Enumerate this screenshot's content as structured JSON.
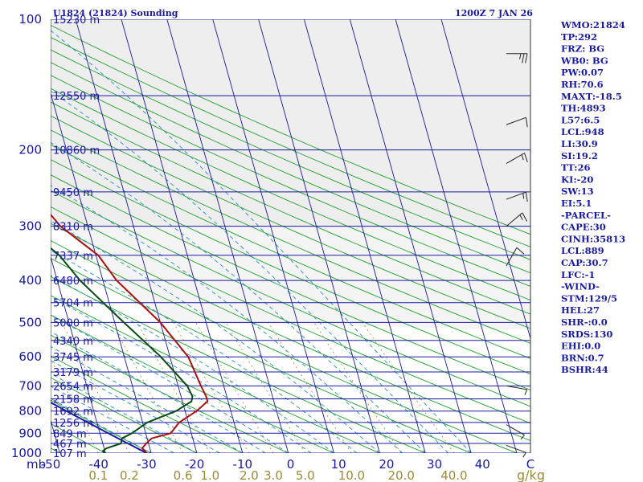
{
  "header": {
    "station": "U1824 (21824) Sounding",
    "time": "1200Z  7 JAN 26"
  },
  "chart_data": {
    "type": "line",
    "title": "U1824 (21824) Sounding",
    "subtitle": "1200Z  7 JAN 26",
    "xlabel": "C",
    "ylabel": "mb",
    "mixing_ratio_unit": "g/kg",
    "xlim": [
      -50,
      50
    ],
    "ylim": [
      1000,
      100
    ],
    "x_ticks": [
      "-50",
      "-40",
      "-30",
      "-20",
      "-10",
      "0",
      "10",
      "20",
      "30",
      "40",
      "C"
    ],
    "p_ticks": [
      "100",
      "200",
      "300",
      "400",
      "500",
      "600",
      "700",
      "800",
      "900",
      "1000"
    ],
    "mixing_ratio_ticks": [
      {
        "v": 0.1,
        "label": "0.1"
      },
      {
        "v": 0.2,
        "label": "0.2"
      },
      {
        "v": 0.6,
        "label": "0.6"
      },
      {
        "v": 1.0,
        "label": "1.0"
      },
      {
        "v": 2.0,
        "label": "2.0"
      },
      {
        "v": 3.0,
        "label": "3.0"
      },
      {
        "v": 5.0,
        "label": "5.0"
      },
      {
        "v": 10.0,
        "label": "10.0"
      },
      {
        "v": 20.0,
        "label": "20.0"
      },
      {
        "v": 40.0,
        "label": "40.0"
      }
    ],
    "heights": [
      {
        "p": 100,
        "label": "15230 m"
      },
      {
        "p": 150,
        "label": "12550 m"
      },
      {
        "p": 200,
        "label": "10860 m"
      },
      {
        "p": 250,
        "label": "9450 m"
      },
      {
        "p": 300,
        "label": "8310 m"
      },
      {
        "p": 350,
        "label": "7337 m"
      },
      {
        "p": 400,
        "label": "6480 m"
      },
      {
        "p": 450,
        "label": "5704 m"
      },
      {
        "p": 500,
        "label": "5000 m"
      },
      {
        "p": 550,
        "label": "4340 m"
      },
      {
        "p": 600,
        "label": "3745 m"
      },
      {
        "p": 650,
        "label": "3179 m"
      },
      {
        "p": 700,
        "label": "2654 m"
      },
      {
        "p": 750,
        "label": "2158 m"
      },
      {
        "p": 800,
        "label": "1692 m"
      },
      {
        "p": 850,
        "label": "1256 m"
      },
      {
        "p": 900,
        "label": "849 m"
      },
      {
        "p": 950,
        "label": "467 m"
      },
      {
        "p": 1000,
        "label": "107 m"
      }
    ],
    "series": [
      {
        "name": "Temperature",
        "color": "#aa1010",
        "points": [
          {
            "p": 1000,
            "t": -31.0
          },
          {
            "p": 990,
            "t": -31.2
          },
          {
            "p": 975,
            "t": -31.7
          },
          {
            "p": 950,
            "t": -30.5
          },
          {
            "p": 925,
            "t": -29.0
          },
          {
            "p": 900,
            "t": -24.5
          },
          {
            "p": 850,
            "t": -22.0
          },
          {
            "p": 800,
            "t": -17.5
          },
          {
            "p": 760,
            "t": -14.5
          },
          {
            "p": 740,
            "t": -14.5
          },
          {
            "p": 700,
            "t": -15.0
          },
          {
            "p": 600,
            "t": -16.0
          },
          {
            "p": 500,
            "t": -20.0
          },
          {
            "p": 400,
            "t": -27.0
          },
          {
            "p": 350,
            "t": -29.5
          },
          {
            "p": 300,
            "t": -36.0
          },
          {
            "p": 275,
            "t": -38.0
          },
          {
            "p": 250,
            "t": -40.0
          },
          {
            "p": 200,
            "t": -46.0
          },
          {
            "p": 150,
            "t": -54.0
          },
          {
            "p": 100,
            "t": -65.0
          }
        ]
      },
      {
        "name": "Dewpoint",
        "color": "#0a4a14",
        "points": [
          {
            "p": 1000,
            "t": -40.0
          },
          {
            "p": 990,
            "t": -40.5
          },
          {
            "p": 975,
            "t": -39.5
          },
          {
            "p": 950,
            "t": -36.0
          },
          {
            "p": 925,
            "t": -35.5
          },
          {
            "p": 900,
            "t": -33.0
          },
          {
            "p": 850,
            "t": -29.0
          },
          {
            "p": 800,
            "t": -22.0
          },
          {
            "p": 760,
            "t": -18.0
          },
          {
            "p": 740,
            "t": -17.5
          },
          {
            "p": 700,
            "t": -18.0
          },
          {
            "p": 600,
            "t": -22.0
          },
          {
            "p": 500,
            "t": -28.0
          },
          {
            "p": 400,
            "t": -35.0
          },
          {
            "p": 350,
            "t": -38.0
          },
          {
            "p": 300,
            "t": -44.0
          },
          {
            "p": 275,
            "t": -46.0
          },
          {
            "p": 250,
            "t": -46.0
          },
          {
            "p": 200,
            "t": -48.0
          },
          {
            "p": 150,
            "t": -53.0
          },
          {
            "p": 100,
            "t": -62.0
          }
        ]
      }
    ],
    "winds": [
      {
        "p": 120,
        "dir": 270,
        "spd": 25
      },
      {
        "p": 175,
        "dir": 250,
        "spd": 10
      },
      {
        "p": 215,
        "dir": 240,
        "spd": 15
      },
      {
        "p": 260,
        "dir": 250,
        "spd": 15
      },
      {
        "p": 300,
        "dir": 230,
        "spd": 15
      },
      {
        "p": 370,
        "dir": 210,
        "spd": 10
      },
      {
        "p": 700,
        "dir": 280,
        "spd": 5
      },
      {
        "p": 860,
        "dir": 300,
        "spd": 5
      },
      {
        "p": 960,
        "dir": 290,
        "spd": 5
      }
    ]
  },
  "indices": {
    "items": [
      "WMO:21824",
      "TP:292",
      "FRZ: BG",
      "WB0: BG",
      "PW:0.07",
      "RH:70.6",
      "MAXT:-18.5",
      "TH:4893",
      "L57:6.5",
      "LCL:948",
      "LI:30.9",
      "SI:19.2",
      "TT:26",
      "KI:-20",
      "SW:13",
      "EI:5.1",
      "-PARCEL-",
      "CAPE:30",
      "CINH:35813",
      "LCL:889",
      "CAP:30.7",
      "LFC:-1",
      "-WIND-",
      "STM:129/5",
      "HEL:27",
      "SHR-:0.0",
      "SRDS:130",
      "EHI:0.0",
      "BRN:0.7",
      "BSHR:44"
    ]
  },
  "colors": {
    "isobar": "#1a1aa0",
    "isotherm": "#1a1aa0",
    "dry_adiabat": "#1f9e2a",
    "moist_adiabat": "#2a8ad0",
    "mixing_ratio": "#9c8a3a",
    "temperature": "#aa1010",
    "dewpoint": "#0a4a14",
    "parcel": "#1a1aa0",
    "axis_text": "#1a1aa0",
    "mixing_ratio_text": "#9c8a3a"
  }
}
